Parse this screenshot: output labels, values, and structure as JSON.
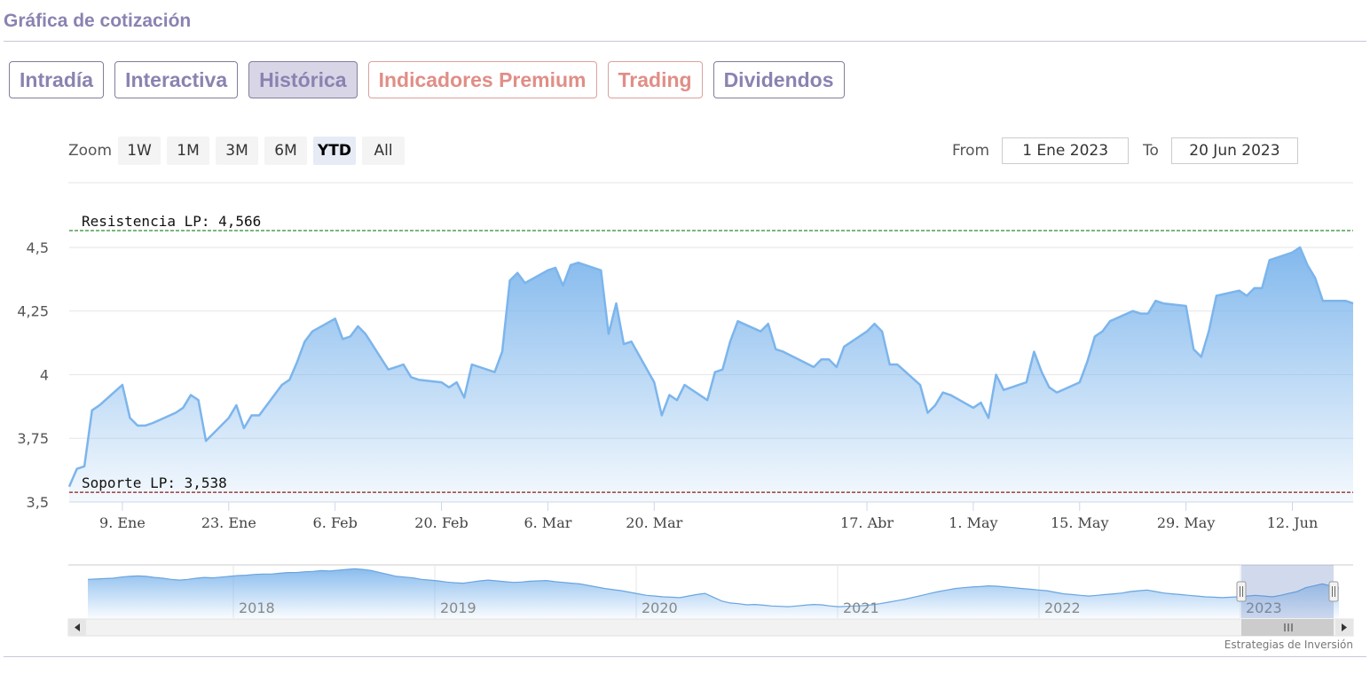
{
  "section_title": "Gráfica de cotización",
  "tabs": [
    {
      "label": "Intradía",
      "active": false,
      "premium": false
    },
    {
      "label": "Interactiva",
      "active": false,
      "premium": false
    },
    {
      "label": "Histórica",
      "active": true,
      "premium": false
    },
    {
      "label": "Indicadores Premium",
      "active": false,
      "premium": true
    },
    {
      "label": "Trading",
      "active": false,
      "premium": true
    },
    {
      "label": "Dividendos",
      "active": false,
      "premium": false
    }
  ],
  "zoom": {
    "label": "Zoom",
    "buttons": [
      "1W",
      "1M",
      "3M",
      "6M",
      "YTD",
      "All"
    ],
    "selected": "YTD"
  },
  "range": {
    "from_label": "From",
    "from_value": "1 Ene 2023",
    "to_label": "To",
    "to_value": "20 Jun 2023"
  },
  "chart_data": {
    "type": "area",
    "ylim": [
      3.5,
      4.566
    ],
    "y_ticks": [
      {
        "value": 3.5,
        "label": "3,5"
      },
      {
        "value": 3.75,
        "label": "3,75"
      },
      {
        "value": 4,
        "label": "4"
      },
      {
        "value": 4.25,
        "label": "4,25"
      },
      {
        "value": 4.5,
        "label": "4,5"
      }
    ],
    "xlim": [
      "2023-01-02",
      "2023-06-20"
    ],
    "x_ticks": [
      {
        "date": "2023-01-09",
        "label": "9. Ene"
      },
      {
        "date": "2023-01-23",
        "label": "23. Ene"
      },
      {
        "date": "2023-02-06",
        "label": "6. Feb"
      },
      {
        "date": "2023-02-20",
        "label": "20. Feb"
      },
      {
        "date": "2023-03-06",
        "label": "6. Mar"
      },
      {
        "date": "2023-03-20",
        "label": "20. Mar"
      },
      {
        "date": "2023-04-17",
        "label": "17. Abr"
      },
      {
        "date": "2023-05-01",
        "label": "1. May"
      },
      {
        "date": "2023-05-15",
        "label": "15. May"
      },
      {
        "date": "2023-05-29",
        "label": "29. May"
      },
      {
        "date": "2023-06-12",
        "label": "12. Jun"
      }
    ],
    "grid": true,
    "reference_lines": [
      {
        "label": "Resistencia LP: 4,566",
        "value": 4.566,
        "color": "#2e8b2e"
      },
      {
        "label": "Soporte LP: 3,538",
        "value": 3.538,
        "color": "#8b1a1a"
      }
    ],
    "series": [
      {
        "color": "#7cb5ec",
        "points": [
          [
            "2023-01-02",
            3.56
          ],
          [
            "2023-01-03",
            3.63
          ],
          [
            "2023-01-04",
            3.64
          ],
          [
            "2023-01-05",
            3.86
          ],
          [
            "2023-01-06",
            3.88
          ],
          [
            "2023-01-09",
            3.96
          ],
          [
            "2023-01-10",
            3.83
          ],
          [
            "2023-01-11",
            3.8
          ],
          [
            "2023-01-12",
            3.8
          ],
          [
            "2023-01-13",
            3.81
          ],
          [
            "2023-01-16",
            3.85
          ],
          [
            "2023-01-17",
            3.87
          ],
          [
            "2023-01-18",
            3.92
          ],
          [
            "2023-01-19",
            3.9
          ],
          [
            "2023-01-20",
            3.74
          ],
          [
            "2023-01-23",
            3.83
          ],
          [
            "2023-01-24",
            3.88
          ],
          [
            "2023-01-25",
            3.79
          ],
          [
            "2023-01-26",
            3.84
          ],
          [
            "2023-01-27",
            3.84
          ],
          [
            "2023-01-30",
            3.96
          ],
          [
            "2023-01-31",
            3.98
          ],
          [
            "2023-02-01",
            4.05
          ],
          [
            "2023-02-02",
            4.13
          ],
          [
            "2023-02-03",
            4.17
          ],
          [
            "2023-02-06",
            4.22
          ],
          [
            "2023-02-07",
            4.14
          ],
          [
            "2023-02-08",
            4.15
          ],
          [
            "2023-02-09",
            4.19
          ],
          [
            "2023-02-10",
            4.16
          ],
          [
            "2023-02-13",
            4.02
          ],
          [
            "2023-02-14",
            4.03
          ],
          [
            "2023-02-15",
            4.04
          ],
          [
            "2023-02-16",
            3.99
          ],
          [
            "2023-02-17",
            3.98
          ],
          [
            "2023-02-20",
            3.97
          ],
          [
            "2023-02-21",
            3.95
          ],
          [
            "2023-02-22",
            3.97
          ],
          [
            "2023-02-23",
            3.91
          ],
          [
            "2023-02-24",
            4.04
          ],
          [
            "2023-02-27",
            4.01
          ],
          [
            "2023-02-28",
            4.09
          ],
          [
            "2023-03-01",
            4.37
          ],
          [
            "2023-03-02",
            4.4
          ],
          [
            "2023-03-03",
            4.36
          ],
          [
            "2023-03-06",
            4.41
          ],
          [
            "2023-03-07",
            4.42
          ],
          [
            "2023-03-08",
            4.35
          ],
          [
            "2023-03-09",
            4.43
          ],
          [
            "2023-03-10",
            4.44
          ],
          [
            "2023-03-13",
            4.41
          ],
          [
            "2023-03-14",
            4.16
          ],
          [
            "2023-03-15",
            4.28
          ],
          [
            "2023-03-16",
            4.12
          ],
          [
            "2023-03-17",
            4.13
          ],
          [
            "2023-03-20",
            3.97
          ],
          [
            "2023-03-21",
            3.84
          ],
          [
            "2023-03-22",
            3.92
          ],
          [
            "2023-03-23",
            3.9
          ],
          [
            "2023-03-24",
            3.96
          ],
          [
            "2023-03-27",
            3.9
          ],
          [
            "2023-03-28",
            4.01
          ],
          [
            "2023-03-29",
            4.02
          ],
          [
            "2023-03-30",
            4.13
          ],
          [
            "2023-03-31",
            4.21
          ],
          [
            "2023-04-03",
            4.17
          ],
          [
            "2023-04-04",
            4.2
          ],
          [
            "2023-04-05",
            4.1
          ],
          [
            "2023-04-06",
            4.09
          ],
          [
            "2023-04-10",
            4.03
          ],
          [
            "2023-04-11",
            4.06
          ],
          [
            "2023-04-12",
            4.06
          ],
          [
            "2023-04-13",
            4.03
          ],
          [
            "2023-04-14",
            4.11
          ],
          [
            "2023-04-17",
            4.17
          ],
          [
            "2023-04-18",
            4.2
          ],
          [
            "2023-04-19",
            4.17
          ],
          [
            "2023-04-20",
            4.04
          ],
          [
            "2023-04-21",
            4.04
          ],
          [
            "2023-04-24",
            3.96
          ],
          [
            "2023-04-25",
            3.85
          ],
          [
            "2023-04-26",
            3.88
          ],
          [
            "2023-04-27",
            3.93
          ],
          [
            "2023-04-28",
            3.92
          ],
          [
            "2023-05-01",
            3.87
          ],
          [
            "2023-05-02",
            3.89
          ],
          [
            "2023-05-03",
            3.83
          ],
          [
            "2023-05-04",
            4.0
          ],
          [
            "2023-05-05",
            3.94
          ],
          [
            "2023-05-08",
            3.97
          ],
          [
            "2023-05-09",
            4.09
          ],
          [
            "2023-05-10",
            4.01
          ],
          [
            "2023-05-11",
            3.95
          ],
          [
            "2023-05-12",
            3.93
          ],
          [
            "2023-05-15",
            3.97
          ],
          [
            "2023-05-16",
            4.05
          ],
          [
            "2023-05-17",
            4.15
          ],
          [
            "2023-05-18",
            4.17
          ],
          [
            "2023-05-19",
            4.21
          ],
          [
            "2023-05-22",
            4.25
          ],
          [
            "2023-05-23",
            4.24
          ],
          [
            "2023-05-24",
            4.24
          ],
          [
            "2023-05-25",
            4.29
          ],
          [
            "2023-05-26",
            4.28
          ],
          [
            "2023-05-29",
            4.27
          ],
          [
            "2023-05-30",
            4.1
          ],
          [
            "2023-05-31",
            4.07
          ],
          [
            "2023-06-01",
            4.17
          ],
          [
            "2023-06-02",
            4.31
          ],
          [
            "2023-06-05",
            4.33
          ],
          [
            "2023-06-06",
            4.31
          ],
          [
            "2023-06-07",
            4.34
          ],
          [
            "2023-06-08",
            4.34
          ],
          [
            "2023-06-09",
            4.45
          ],
          [
            "2023-06-12",
            4.48
          ],
          [
            "2023-06-13",
            4.5
          ],
          [
            "2023-06-14",
            4.43
          ],
          [
            "2023-06-15",
            4.38
          ],
          [
            "2023-06-16",
            4.29
          ],
          [
            "2023-06-19",
            4.29
          ],
          [
            "2023-06-20",
            4.28
          ]
        ]
      }
    ],
    "navigator": {
      "year_labels": [
        "2018",
        "2019",
        "2020",
        "2021",
        "2022",
        "2023"
      ],
      "window": [
        "2023-01-02",
        "2023-06-20"
      ],
      "series": [
        4.52,
        4.53,
        4.54,
        4.55,
        4.58,
        4.6,
        4.61,
        4.6,
        4.57,
        4.55,
        4.52,
        4.5,
        4.52,
        4.55,
        4.57,
        4.56,
        4.58,
        4.6,
        4.62,
        4.63,
        4.65,
        4.66,
        4.66,
        4.68,
        4.7,
        4.7,
        4.72,
        4.73,
        4.75,
        4.74,
        4.76,
        4.78,
        4.8,
        4.78,
        4.75,
        4.7,
        4.65,
        4.6,
        4.58,
        4.56,
        4.52,
        4.5,
        4.48,
        4.45,
        4.43,
        4.42,
        4.45,
        4.48,
        4.5,
        4.48,
        4.46,
        4.44,
        4.45,
        4.47,
        4.48,
        4.49,
        4.46,
        4.44,
        4.42,
        4.4,
        4.36,
        4.32,
        4.28,
        4.25,
        4.22,
        4.18,
        4.14,
        4.1,
        4.08,
        4.06,
        4.05,
        4.04,
        4.08,
        4.12,
        4.15,
        4.05,
        3.95,
        3.9,
        3.88,
        3.85,
        3.86,
        3.84,
        3.82,
        3.81,
        3.8,
        3.82,
        3.84,
        3.86,
        3.85,
        3.82,
        3.8,
        3.81,
        3.82,
        3.83,
        3.85,
        3.88,
        3.92,
        3.96,
        4.0,
        4.05,
        4.1,
        4.15,
        4.2,
        4.24,
        4.28,
        4.3,
        4.32,
        4.33,
        4.35,
        4.34,
        4.32,
        4.3,
        4.28,
        4.26,
        4.24,
        4.22,
        4.18,
        4.14,
        4.12,
        4.1,
        4.08,
        4.1,
        4.12,
        4.14,
        4.16,
        4.2,
        4.22,
        4.24,
        4.2,
        4.16,
        4.14,
        4.12,
        4.1,
        4.08,
        4.06,
        4.05,
        4.04,
        4.05,
        4.06,
        4.08,
        4.1,
        4.08,
        4.06,
        4.1,
        4.15,
        4.2,
        4.3,
        4.35,
        4.4,
        4.35,
        4.3
      ]
    }
  },
  "credit": "Estrategias de Inversión"
}
